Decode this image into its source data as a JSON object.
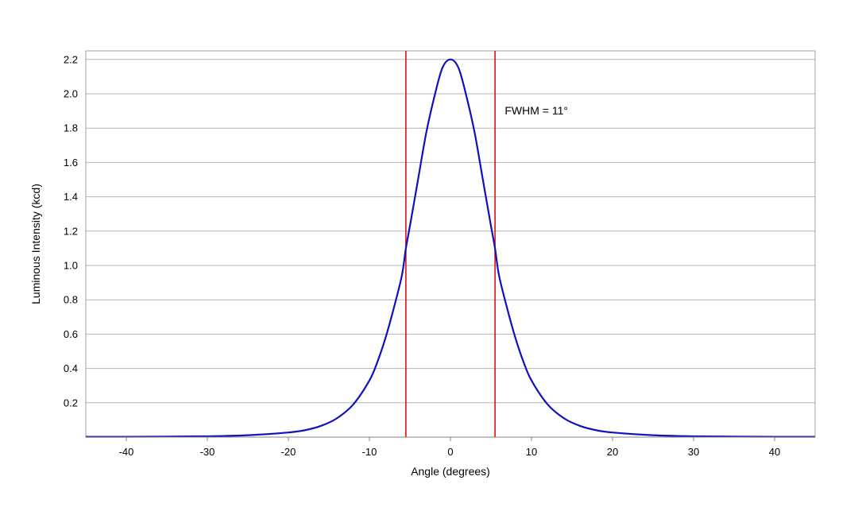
{
  "chart_data": {
    "type": "line",
    "xlabel": "Angle (degrees)",
    "ylabel": "Luminous Intensity (kcd)",
    "xlim": [
      -45,
      45
    ],
    "ylim": [
      0,
      2.25
    ],
    "x_ticks": [
      -40,
      -30,
      -20,
      -10,
      0,
      10,
      20,
      30,
      40
    ],
    "y_ticks": [
      0.2,
      0.4,
      0.6,
      0.8,
      1.0,
      1.2,
      1.4,
      1.6,
      1.8,
      2.0,
      2.2
    ],
    "y_tick_labels": [
      "0.2",
      "0.4",
      "0.6",
      "0.8",
      "1.0",
      "1.2",
      "1.4",
      "1.6",
      "1.8",
      "2.0",
      "2.2"
    ],
    "grid": {
      "horizontal": true,
      "vertical": false
    },
    "series": [
      {
        "color": "#1010c0",
        "x": [
          -45,
          -40,
          -35,
          -30,
          -25,
          -20,
          -18,
          -16,
          -14,
          -12,
          -10,
          -9,
          -8,
          -7,
          -6,
          -5.5,
          -5,
          -4,
          -3,
          -2,
          -1,
          0,
          1,
          2,
          3,
          4,
          5,
          5.5,
          6,
          7,
          8,
          9,
          10,
          12,
          14,
          16,
          18,
          20,
          25,
          30,
          35,
          40,
          45
        ],
        "y": [
          0.002,
          0.002,
          0.003,
          0.005,
          0.011,
          0.027,
          0.04,
          0.065,
          0.11,
          0.19,
          0.33,
          0.44,
          0.58,
          0.75,
          0.94,
          1.1,
          1.23,
          1.5,
          1.77,
          1.98,
          2.15,
          2.2,
          2.15,
          1.98,
          1.77,
          1.5,
          1.23,
          1.1,
          0.94,
          0.75,
          0.58,
          0.44,
          0.33,
          0.19,
          0.11,
          0.065,
          0.04,
          0.027,
          0.011,
          0.005,
          0.003,
          0.002,
          0.002
        ]
      }
    ],
    "vlines": [
      {
        "x": -5.5,
        "color": "#dd1111"
      },
      {
        "x": 5.5,
        "color": "#dd1111"
      }
    ],
    "annotations": [
      {
        "text": "FWHM = 11°",
        "x": 6.7,
        "y": 1.88
      }
    ]
  }
}
